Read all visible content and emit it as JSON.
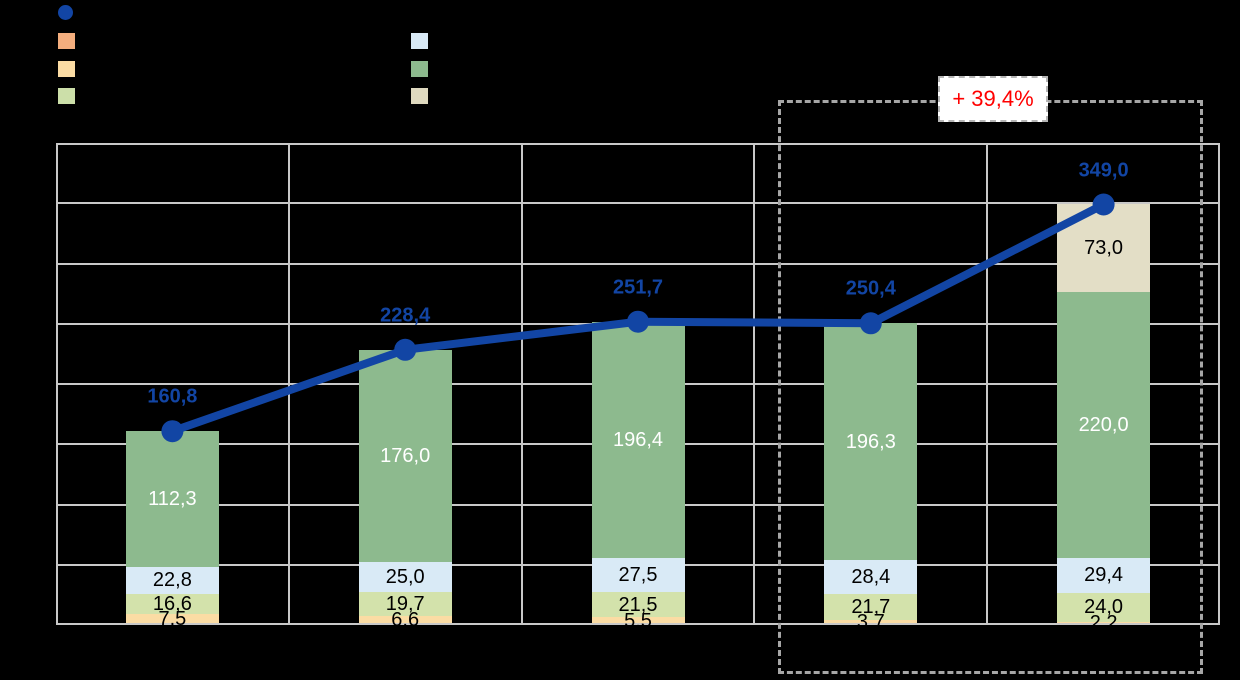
{
  "colors": {
    "background": "#000000",
    "gridline": "#C8C8C8",
    "line_blue": "#1245A4",
    "annotation_red": "#FF0000",
    "annotation_box_bg": "#FFFFFF",
    "highlight_dash_gray": "#A6A6A6"
  },
  "legend": {
    "items": [
      {
        "name": "line-series-marker",
        "shape": "circle",
        "color": "#1245A4",
        "col": 0,
        "row": 0
      },
      {
        "name": "orange-series-marker",
        "shape": "square",
        "color": "#F4AE7E",
        "col": 0,
        "row": 1
      },
      {
        "name": "tan-series-marker",
        "shape": "square",
        "color": "#FBDCA4",
        "col": 0,
        "row": 2
      },
      {
        "name": "light-green-series-marker",
        "shape": "square",
        "color": "#CCDFA9",
        "col": 0,
        "row": 3
      },
      {
        "name": "light-blue-series-marker",
        "shape": "square",
        "color": "#D9EAF6",
        "col": 1,
        "row": 1
      },
      {
        "name": "green-series-marker",
        "shape": "square",
        "color": "#8DBA8E",
        "col": 1,
        "row": 2
      },
      {
        "name": "beige-series-marker",
        "shape": "square",
        "color": "#DFD9BF",
        "col": 1,
        "row": 3
      }
    ]
  },
  "chart_data": {
    "type": "combo-stacked-bar-line",
    "n_categories": 5,
    "y_axis": {
      "min": 0,
      "max": 400,
      "gridline_step": 50,
      "tick_labels_visible": false
    },
    "bar_series": [
      {
        "name": "orange",
        "color": "#F4AE7E",
        "values": [
          1.6,
          1.1,
          0.8,
          0.3,
          0.4
        ],
        "labels": [
          "",
          "",
          "",
          "",
          ""
        ],
        "label_color": "#000000"
      },
      {
        "name": "tan",
        "color": "#FBDCA4",
        "values": [
          7.5,
          6.6,
          5.5,
          3.7,
          2.2
        ],
        "labels": [
          "7,5",
          "6,6",
          "5,5",
          "3,7",
          "2,2"
        ],
        "label_color": "#000000"
      },
      {
        "name": "light-green",
        "color": "#D3E2AB",
        "values": [
          16.6,
          19.7,
          21.5,
          21.7,
          24.0
        ],
        "labels": [
          "16,6",
          "19,7",
          "21,5",
          "21,7",
          "24,0"
        ],
        "label_color": "#000000"
      },
      {
        "name": "light-blue",
        "color": "#D9EAF6",
        "values": [
          22.8,
          25.0,
          27.5,
          28.4,
          29.4
        ],
        "labels": [
          "22,8",
          "25,0",
          "27,5",
          "28,4",
          "29,4"
        ],
        "label_color": "#000000"
      },
      {
        "name": "green",
        "color": "#8DBA8E",
        "values": [
          112.3,
          176.0,
          196.4,
          196.3,
          220.0
        ],
        "labels": [
          "112,3",
          "176,0",
          "196,4",
          "196,3",
          "220,0"
        ],
        "label_color": "#FFFFFF"
      },
      {
        "name": "beige",
        "color": "#E3DEC6",
        "values": [
          0,
          0,
          0,
          0,
          73.0
        ],
        "labels": [
          "",
          "",
          "",
          "",
          "73,0"
        ],
        "label_color": "#000000"
      }
    ],
    "line_series": {
      "name": "total",
      "color": "#1245A4",
      "values": [
        160.8,
        228.4,
        251.7,
        250.4,
        349.0
      ],
      "labels": [
        "160,8",
        "228,4",
        "251,7",
        "250,4",
        "349,0"
      ]
    },
    "annotation": {
      "text": "+ 39,4%",
      "covers_categories": [
        4,
        5
      ]
    }
  }
}
